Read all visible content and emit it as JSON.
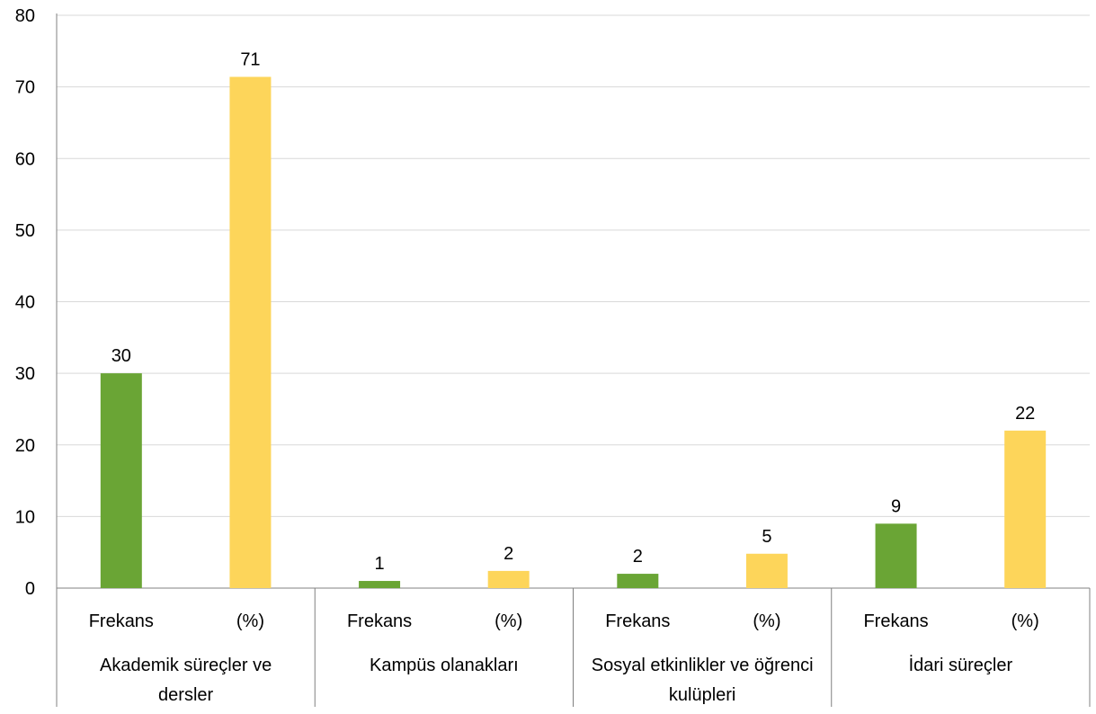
{
  "chart_data": {
    "type": "bar",
    "title": "",
    "xlabel": "",
    "ylabel": "",
    "ylim": [
      0,
      80
    ],
    "y_ticks": [
      0,
      10,
      20,
      30,
      40,
      50,
      60,
      70,
      80
    ],
    "grid": "horizontal",
    "legend": "none",
    "colors": {
      "Frekans": "#6aa535",
      "(%)": "#fdd55a",
      "grid": "#d9d9d9",
      "axis": "#808080"
    },
    "groups": [
      {
        "label_lines": [
          "Akademik süreçler ve",
          "dersler"
        ],
        "bars": [
          {
            "label": "Frekans",
            "value": 30,
            "data_label": "30"
          },
          {
            "label": "(%)",
            "value": 71.4,
            "data_label": "71"
          }
        ]
      },
      {
        "label_lines": [
          "Kampüs olanakları"
        ],
        "bars": [
          {
            "label": "Frekans",
            "value": 1,
            "data_label": "1"
          },
          {
            "label": "(%)",
            "value": 2.4,
            "data_label": "2"
          }
        ]
      },
      {
        "label_lines": [
          "Sosyal etkinlikler ve öğrenci",
          "kulüpleri"
        ],
        "bars": [
          {
            "label": "Frekans",
            "value": 2,
            "data_label": "2"
          },
          {
            "label": "(%)",
            "value": 4.8,
            "data_label": "5"
          }
        ]
      },
      {
        "label_lines": [
          "İdari süreçler"
        ],
        "bars": [
          {
            "label": "Frekans",
            "value": 9,
            "data_label": "9"
          },
          {
            "label": "(%)",
            "value": 22,
            "data_label": "22"
          }
        ]
      }
    ]
  }
}
